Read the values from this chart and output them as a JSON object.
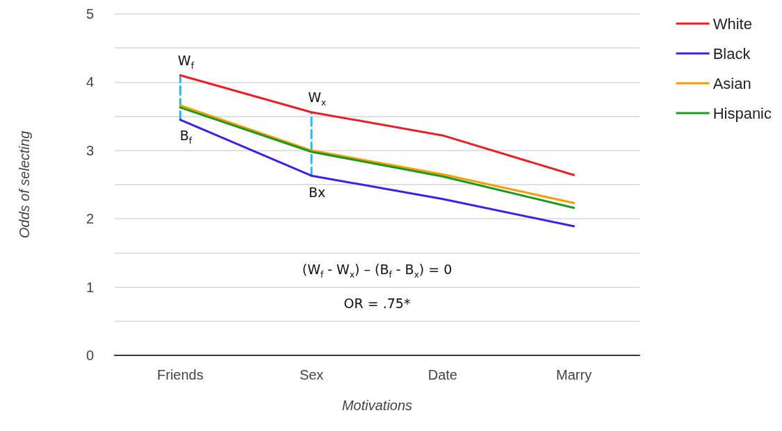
{
  "chart_data": {
    "type": "line",
    "xlabel": "Motivations",
    "ylabel": "Odds of selecting",
    "categories": [
      "Friends",
      "Sex",
      "Date",
      "Marry"
    ],
    "series": [
      {
        "name": "White",
        "color": "#ee1c25",
        "values": [
          4.1,
          3.56,
          3.22,
          2.64
        ]
      },
      {
        "name": "Black",
        "color": "#3b1ff2",
        "values": [
          3.45,
          2.63,
          2.29,
          1.89
        ]
      },
      {
        "name": "Asian",
        "color": "#ff9900",
        "values": [
          3.66,
          3.0,
          2.65,
          2.23
        ]
      },
      {
        "name": "Hispanic",
        "color": "#1a9a1a",
        "values": [
          3.63,
          2.98,
          2.62,
          2.16
        ]
      },
      {
        "color": "#29b6f6",
        "x": [
          "Friends",
          "Friends"
        ],
        "values": [
          3.45,
          4.1
        ],
        "line_style": "dashed"
      },
      {
        "color": "#29b6f6",
        "x": [
          "Sex",
          "Sex"
        ],
        "values": [
          2.63,
          3.56
        ],
        "line_style": "dashed"
      }
    ],
    "ylim": [
      0,
      5
    ],
    "yticks": [
      0,
      {
        "value": 0.5,
        "label": null
      },
      1,
      {
        "value": 1.5,
        "label": null
      },
      2,
      {
        "value": 2.5,
        "label": null
      },
      3,
      {
        "value": 3.5,
        "label": null
      },
      4,
      {
        "value": 4.5,
        "label": null
      },
      5
    ],
    "grid": "y",
    "legend": "top right",
    "marker": "none",
    "line_style": "solid",
    "annotations": [
      {
        "text": "W$_{f}$",
        "x": "Friends",
        "y": 4.1
      },
      {
        "text": "B$_{f}$",
        "x": "Friends",
        "y": 3.45
      },
      {
        "text": "W$_{x}$",
        "x": "Sex",
        "y": 3.56
      },
      {
        "text": "Bx",
        "x": "Sex",
        "y": 2.63
      },
      "(W$_{f}$ - W$_{x}$) – (B$_{f}$ - B$_{x}$) = 0",
      "OR = .75*"
    ]
  }
}
